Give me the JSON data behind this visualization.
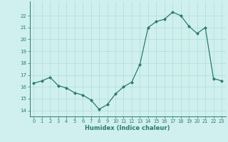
{
  "x": [
    0,
    1,
    2,
    3,
    4,
    5,
    6,
    7,
    8,
    9,
    10,
    11,
    12,
    13,
    14,
    15,
    16,
    17,
    18,
    19,
    20,
    21,
    22,
    23
  ],
  "y": [
    16.3,
    16.5,
    16.8,
    16.1,
    15.9,
    15.5,
    15.3,
    14.9,
    14.1,
    14.5,
    15.4,
    16.0,
    16.4,
    17.9,
    21.0,
    21.5,
    21.7,
    22.3,
    22.0,
    21.1,
    20.5,
    21.0,
    16.7,
    16.5
  ],
  "ylim": [
    13.5,
    23.2
  ],
  "xlim": [
    -0.5,
    23.5
  ],
  "yticks": [
    14,
    15,
    16,
    17,
    18,
    19,
    20,
    21,
    22
  ],
  "xticks": [
    0,
    1,
    2,
    3,
    4,
    5,
    6,
    7,
    8,
    9,
    10,
    11,
    12,
    13,
    14,
    15,
    16,
    17,
    18,
    19,
    20,
    21,
    22,
    23
  ],
  "xlabel": "Humidex (Indice chaleur)",
  "line_color": "#2d7a6a",
  "marker_color": "#2d7a6a",
  "bg_color": "#cff0ee",
  "grid_color": "#b0ddd8"
}
